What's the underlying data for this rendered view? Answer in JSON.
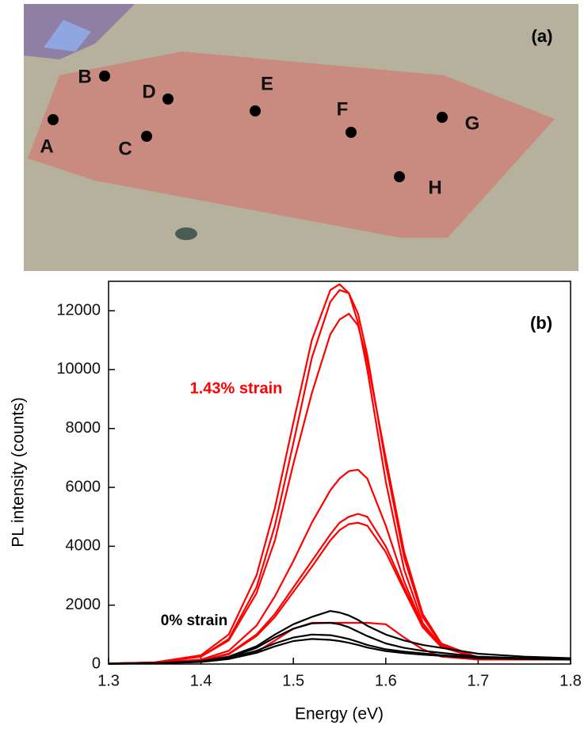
{
  "photo_panel": {
    "panel_label": "(a)",
    "point_labels": [
      "A",
      "B",
      "C",
      "D",
      "E",
      "F",
      "G",
      "H"
    ]
  },
  "chart_data": {
    "type": "line",
    "panel_label": "(b)",
    "xlabel": "Energy (eV)",
    "ylabel": "PL intensity (counts)",
    "annotations": [
      "1.43% strain",
      "0% strain"
    ],
    "x": [
      1.3,
      1.35,
      1.4,
      1.43,
      1.46,
      1.48,
      1.5,
      1.52,
      1.54,
      1.55,
      1.56,
      1.57,
      1.58,
      1.6,
      1.62,
      1.64,
      1.66,
      1.7,
      1.75,
      1.8
    ],
    "series": [
      {
        "color": "#ff0000",
        "values": [
          20,
          60,
          300,
          1000,
          3000,
          5300,
          8200,
          11000,
          12700,
          12900,
          12600,
          11600,
          10000,
          6200,
          3200,
          1400,
          600,
          200,
          150,
          150
        ]
      },
      {
        "color": "#ff0000",
        "values": [
          20,
          50,
          250,
          850,
          2600,
          4700,
          7500,
          10400,
          12300,
          12700,
          12600,
          11900,
          10500,
          6800,
          3600,
          1600,
          650,
          200,
          150,
          150
        ]
      },
      {
        "color": "#ff0000",
        "values": [
          20,
          50,
          250,
          800,
          2400,
          4200,
          6800,
          9200,
          11200,
          11700,
          11900,
          11500,
          10300,
          7000,
          3800,
          1700,
          700,
          220,
          150,
          150
        ]
      },
      {
        "color": "#ff0000",
        "values": [
          20,
          40,
          150,
          450,
          1300,
          2300,
          3500,
          4800,
          5900,
          6300,
          6550,
          6600,
          6300,
          4700,
          2800,
          1300,
          600,
          200,
          150,
          150
        ]
      },
      {
        "color": "#ff0000",
        "values": [
          20,
          40,
          120,
          350,
          1000,
          1700,
          2600,
          3500,
          4400,
          4800,
          5000,
          5100,
          5000,
          4000,
          2600,
          1300,
          600,
          200,
          150,
          150
        ]
      },
      {
        "color": "#ff0000",
        "values": [
          20,
          40,
          110,
          330,
          950,
          1600,
          2450,
          3300,
          4200,
          4550,
          4750,
          4800,
          4700,
          3800,
          2500,
          1250,
          580,
          200,
          150,
          150
        ]
      },
      {
        "color": "#ff0000",
        "values": [
          20,
          40,
          100,
          200,
          400,
          800,
          1200,
          1400,
          1400,
          1400,
          1400,
          1400,
          1400,
          1350,
          900,
          500,
          250,
          150,
          150,
          150
        ]
      },
      {
        "color": "#000000",
        "values": [
          10,
          30,
          100,
          250,
          600,
          1000,
          1350,
          1600,
          1800,
          1750,
          1650,
          1500,
          1300,
          1000,
          800,
          650,
          550,
          350,
          250,
          200
        ]
      },
      {
        "color": "#000000",
        "values": [
          10,
          30,
          90,
          220,
          550,
          900,
          1200,
          1380,
          1400,
          1350,
          1250,
          1100,
          950,
          700,
          550,
          450,
          380,
          250,
          200,
          180
        ]
      },
      {
        "color": "#000000",
        "values": [
          10,
          25,
          80,
          200,
          450,
          700,
          900,
          1000,
          980,
          920,
          850,
          750,
          650,
          500,
          420,
          360,
          300,
          220,
          180,
          160
        ]
      },
      {
        "color": "#000000",
        "values": [
          10,
          25,
          70,
          170,
          380,
          600,
          780,
          850,
          820,
          780,
          720,
          650,
          560,
          440,
          370,
          320,
          280,
          200,
          170,
          150
        ]
      }
    ],
    "xlim": [
      1.3,
      1.8
    ],
    "ylim": [
      0,
      13000
    ],
    "xticks": [
      1.3,
      1.4,
      1.5,
      1.6,
      1.7,
      1.8
    ],
    "yticks": [
      0,
      2000,
      4000,
      6000,
      8000,
      10000,
      12000
    ]
  }
}
